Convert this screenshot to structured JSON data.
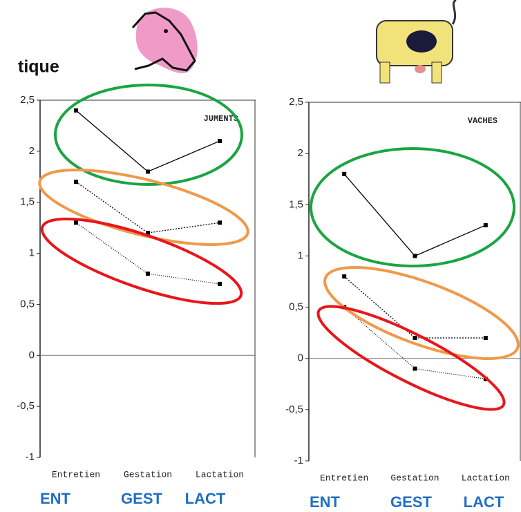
{
  "title": "tique",
  "chart_data": [
    {
      "type": "line",
      "annotation": "JUMENTS",
      "categories": [
        "Entretien",
        "Gestation",
        "Lactation"
      ],
      "x_sublabels": [
        "ENT",
        "GEST",
        "LACT"
      ],
      "series": [
        {
          "color": "#000000",
          "values": [
            2.4,
            1.8,
            2.1
          ]
        },
        {
          "color": "#000000",
          "values": [
            1.7,
            1.2,
            1.3
          ]
        },
        {
          "color": "#000000",
          "values": [
            1.3,
            0.8,
            0.7
          ]
        }
      ],
      "ylim": [
        -1,
        2.5
      ],
      "yticks": [
        -1,
        {
          "value": -0.5,
          "label": "-0,5"
        },
        0,
        {
          "value": 0.5,
          "label": "0,5"
        },
        1,
        {
          "value": 1.5,
          "label": "1,5"
        },
        2,
        {
          "value": 2.5,
          "label": "2,5"
        }
      ]
    },
    {
      "type": "line",
      "annotation": "VACHES",
      "categories": [
        "Entretien",
        "Gestation",
        "Lactation"
      ],
      "x_sublabels": [
        "ENT",
        "GEST",
        "LACT"
      ],
      "series": [
        {
          "color": "#000000",
          "values": [
            1.8,
            1.0,
            1.3
          ]
        },
        {
          "color": "#000000",
          "values": [
            0.8,
            0.2,
            0.2
          ]
        },
        {
          "color": "#000000",
          "values": [
            0.5,
            -0.1,
            -0.2
          ]
        }
      ],
      "ylim": [
        -1,
        2.5
      ],
      "yticks": [
        -1,
        {
          "value": -0.5,
          "label": "-0,5"
        },
        0,
        {
          "value": 0.5,
          "label": "0,5"
        },
        1,
        {
          "value": 1.5,
          "label": "1,5"
        },
        2,
        {
          "value": 2.5,
          "label": "2,5"
        }
      ]
    }
  ]
}
